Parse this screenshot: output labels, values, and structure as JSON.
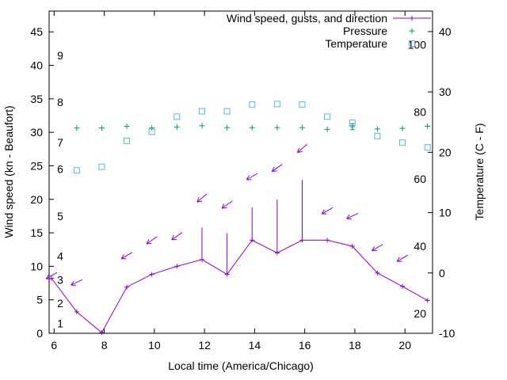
{
  "window": {
    "background": "#ffffff"
  },
  "colors": {
    "wind": "#9400d3",
    "pressure": "#009e73",
    "temperature": "#56b4e9",
    "axis": "#000000"
  },
  "legend": {
    "items": [
      {
        "label": "Wind speed, gusts, and direction",
        "marker": "line-plus",
        "series": "wind"
      },
      {
        "label": "Pressure",
        "marker": "plus",
        "series": "pressure"
      },
      {
        "label": "Temperature",
        "marker": "square",
        "series": "temperature"
      }
    ]
  },
  "axes": {
    "x": {
      "label": "Local time (America/Chicago)",
      "min": 5.8,
      "max": 21.1,
      "ticks": [
        6,
        8,
        10,
        12,
        14,
        16,
        18,
        20
      ]
    },
    "y_left": {
      "label": "Wind speed (kn - Beaufort)",
      "min": 0,
      "max": 48.1,
      "ticks": [
        0,
        5,
        10,
        15,
        20,
        25,
        30,
        35,
        40,
        45
      ],
      "beaufort": [
        {
          "label": "1",
          "kn": 1.5
        },
        {
          "label": "2",
          "kn": 4.5
        },
        {
          "label": "3",
          "kn": 8
        },
        {
          "label": "4",
          "kn": 11.5
        },
        {
          "label": "5",
          "kn": 17.5
        },
        {
          "label": "6",
          "kn": 24.5
        },
        {
          "label": "7",
          "kn": 28.5
        },
        {
          "label": "8",
          "kn": 34.5
        },
        {
          "label": "9",
          "kn": 41.5
        }
      ]
    },
    "y_right": {
      "label": "Temperature (C - F)",
      "min": -10,
      "max": 43.4,
      "ticks": [
        -10,
        0,
        10,
        20,
        30,
        40
      ],
      "fahrenheit": [
        {
          "label": "20",
          "c": -6.7
        },
        {
          "label": "40",
          "c": 4.4
        },
        {
          "label": "60",
          "c": 15.6
        },
        {
          "label": "80",
          "c": 26.7
        },
        {
          "label": "100",
          "c": 37.8
        }
      ]
    }
  },
  "chart_data": {
    "type": "line",
    "x_axis": "Local time (America/Chicago)",
    "series": [
      {
        "name": "Wind speed, gusts, and direction",
        "axis": "left",
        "units": "kn",
        "style": "line+points+gusts+arrows",
        "points": [
          {
            "t": 5.9,
            "speed": 8.2
          },
          {
            "t": 6.9,
            "speed": 3.2
          },
          {
            "t": 7.9,
            "speed": 0.1
          },
          {
            "t": 8.9,
            "speed": 6.9
          },
          {
            "t": 9.9,
            "speed": 8.8
          },
          {
            "t": 10.9,
            "speed": 10.0
          },
          {
            "t": 11.9,
            "speed": 11.0,
            "gust": 15.8
          },
          {
            "t": 12.9,
            "speed": 8.8,
            "gust": 14.9
          },
          {
            "t": 13.9,
            "speed": 13.9,
            "gust": 18.8
          },
          {
            "t": 14.9,
            "speed": 12.0,
            "gust": 20.0
          },
          {
            "t": 15.9,
            "speed": 13.9,
            "gust": 22.9
          },
          {
            "t": 16.9,
            "speed": 13.9
          },
          {
            "t": 17.9,
            "speed": 13.0
          },
          {
            "t": 18.9,
            "speed": 9.0
          },
          {
            "t": 19.9,
            "speed": 7.0
          },
          {
            "t": 20.9,
            "speed": 4.9
          }
        ],
        "direction_arrows": [
          {
            "t": 5.9,
            "kn": 8.6,
            "angle": 150
          },
          {
            "t": 6.9,
            "kn": 7.6,
            "angle": 155
          },
          {
            "t": 8.9,
            "kn": 11.6,
            "angle": 150
          },
          {
            "t": 9.9,
            "kn": 13.9,
            "angle": 145
          },
          {
            "t": 10.9,
            "kn": 14.5,
            "angle": 145
          },
          {
            "t": 11.9,
            "kn": 20.2,
            "angle": 140
          },
          {
            "t": 12.9,
            "kn": 19.2,
            "angle": 145
          },
          {
            "t": 13.9,
            "kn": 23.4,
            "angle": 150
          },
          {
            "t": 14.9,
            "kn": 24.7,
            "angle": 145
          },
          {
            "t": 15.9,
            "kn": 27.6,
            "angle": 140
          },
          {
            "t": 16.9,
            "kn": 18.3,
            "angle": 150
          },
          {
            "t": 17.9,
            "kn": 17.5,
            "angle": 155
          },
          {
            "t": 18.9,
            "kn": 12.8,
            "angle": 150
          },
          {
            "t": 19.9,
            "kn": 11.2,
            "angle": 150
          }
        ]
      },
      {
        "name": "Pressure",
        "axis": "left",
        "style": "points",
        "points": [
          {
            "t": 6.9,
            "v": 30.65
          },
          {
            "t": 7.9,
            "v": 30.65
          },
          {
            "t": 8.9,
            "v": 30.9
          },
          {
            "t": 9.9,
            "v": 30.65
          },
          {
            "t": 10.9,
            "v": 30.8
          },
          {
            "t": 11.9,
            "v": 31.0
          },
          {
            "t": 12.9,
            "v": 30.7
          },
          {
            "t": 13.9,
            "v": 30.7
          },
          {
            "t": 14.9,
            "v": 30.7
          },
          {
            "t": 15.9,
            "v": 30.7
          },
          {
            "t": 16.9,
            "v": 30.45
          },
          {
            "t": 17.9,
            "v": 30.85,
            "lo": 30.4,
            "hi": 31.3
          },
          {
            "t": 18.9,
            "v": 30.5
          },
          {
            "t": 19.9,
            "v": 30.6
          },
          {
            "t": 20.9,
            "v": 30.9
          }
        ]
      },
      {
        "name": "Temperature",
        "axis": "right",
        "units": "C",
        "style": "points",
        "points": [
          {
            "t": 6.9,
            "c": 17.0
          },
          {
            "t": 7.9,
            "c": 17.6
          },
          {
            "t": 8.9,
            "c": 21.9
          },
          {
            "t": 9.9,
            "c": 23.4
          },
          {
            "t": 10.9,
            "c": 25.9
          },
          {
            "t": 11.9,
            "c": 26.8
          },
          {
            "t": 12.9,
            "c": 26.8
          },
          {
            "t": 13.9,
            "c": 27.9
          },
          {
            "t": 14.9,
            "c": 28.0
          },
          {
            "t": 15.9,
            "c": 27.9
          },
          {
            "t": 16.9,
            "c": 25.9
          },
          {
            "t": 17.9,
            "c": 24.9
          },
          {
            "t": 18.9,
            "c": 22.7
          },
          {
            "t": 19.9,
            "c": 21.6
          },
          {
            "t": 20.9,
            "c": 20.8
          }
        ]
      }
    ]
  }
}
